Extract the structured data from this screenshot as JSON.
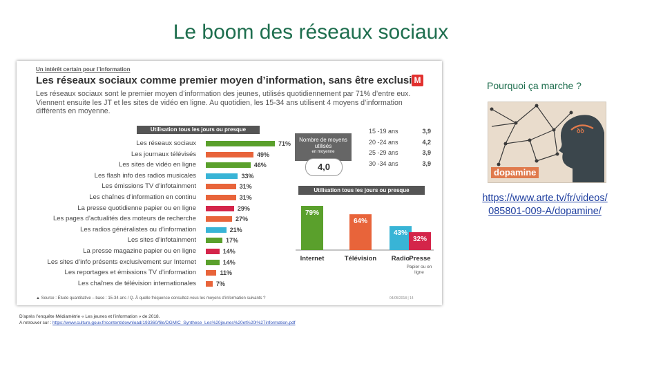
{
  "slide": {
    "title": "Le boom des réseaux sociaux"
  },
  "infographic": {
    "kicker": "Un intérêt certain pour l’information",
    "headline": "Les réseaux sociaux comme premier moyen d’information, sans être exclusif",
    "lead": "Les réseaux sociaux sont le premier moyen d’information des jeunes, utilisés quotidiennement par 71% d’entre eux. Viennent ensuite les JT et les sites de vidéo en ligne. Au quotidien, les 15-34 ans utilisent 4 moyens d’information différents en moyenne.",
    "logo_letter": "M",
    "source": "▲ Source : Étude quantitative – base : 15-34 ans / Q. À quelle fréquence consultez-vous les moyens d’information suivants ?",
    "page_no": "04/05/2018  |  14"
  },
  "chart_data": [
    {
      "type": "bar",
      "orientation": "horizontal",
      "title": "Utilisation tous les jours ou presque",
      "categories": [
        "Les réseaux sociaux",
        "Les journaux télévisés",
        "Les sites de vidéo en ligne",
        "Les flash info des radios musicales",
        "Les émissions TV d’infotainment",
        "Les chaînes d’information en continu",
        "La presse quotidienne papier ou en ligne",
        "Les pages d’actualités des moteurs de recherche",
        "Les radios généralistes ou d’information",
        "Les sites d’infotainment",
        "La presse magazine papier ou en ligne",
        "Les sites d’info présents exclusivement sur Internet",
        "Les reportages et émissions TV d’information",
        "Les chaînes de télévision internationales"
      ],
      "values": [
        71,
        49,
        46,
        33,
        31,
        31,
        29,
        27,
        21,
        17,
        14,
        14,
        11,
        7
      ],
      "value_labels": [
        "71%",
        "49%",
        "46%",
        "33%",
        "31%",
        "31%",
        "29%",
        "27%",
        "21%",
        "17%",
        "14%",
        "14%",
        "11%",
        "7%"
      ],
      "colors": [
        "#5aa02c",
        "#e8643a",
        "#5aa02c",
        "#38b4d6",
        "#e8643a",
        "#e8643a",
        "#d4254a",
        "#e8643a",
        "#38b4d6",
        "#5aa02c",
        "#d4254a",
        "#5aa02c",
        "#e8643a",
        "#e8643a"
      ]
    },
    {
      "type": "table",
      "title": "Nombre de moyens utilisés",
      "subtitle": "en moyenne",
      "overall": "4,0",
      "rows": [
        {
          "age": "15 -19 ans",
          "value": "3,9"
        },
        {
          "age": "20 -24 ans",
          "value": "4,2"
        },
        {
          "age": "25 -29 ans",
          "value": "3,9"
        },
        {
          "age": "30 -34 ans",
          "value": "3,9"
        }
      ]
    },
    {
      "type": "bar",
      "orientation": "vertical",
      "title": "Utilisation tous les jours ou presque",
      "categories": [
        "Internet",
        "Télévision",
        "Radio",
        "Presse"
      ],
      "values": [
        79,
        64,
        43,
        32
      ],
      "value_labels": [
        "79%",
        "64%",
        "43%",
        "32%"
      ],
      "colors": [
        "#5aa02c",
        "#e8643a",
        "#38b4d6",
        "#d4254a"
      ],
      "note": "Papier ou en ligne"
    }
  ],
  "footer": {
    "line1": "D’après l’enquête Médiamétrie «  Les jeunes et l’information  » de 2018.",
    "line2_prefix": "A retrouver sur : ",
    "line2_link": "https://www.culture.gouv.fr/content/download/193360/file/DGMIC_Synthese_Les%20jeunes%20et%20l%27information.pdf"
  },
  "sidebar": {
    "question": "Pourquoi ça marche ?",
    "image_label": "dopamine",
    "link_line1": "https://www.arte.tv/fr/videos/",
    "link_line2": "085801-009-A/dopamine/"
  }
}
